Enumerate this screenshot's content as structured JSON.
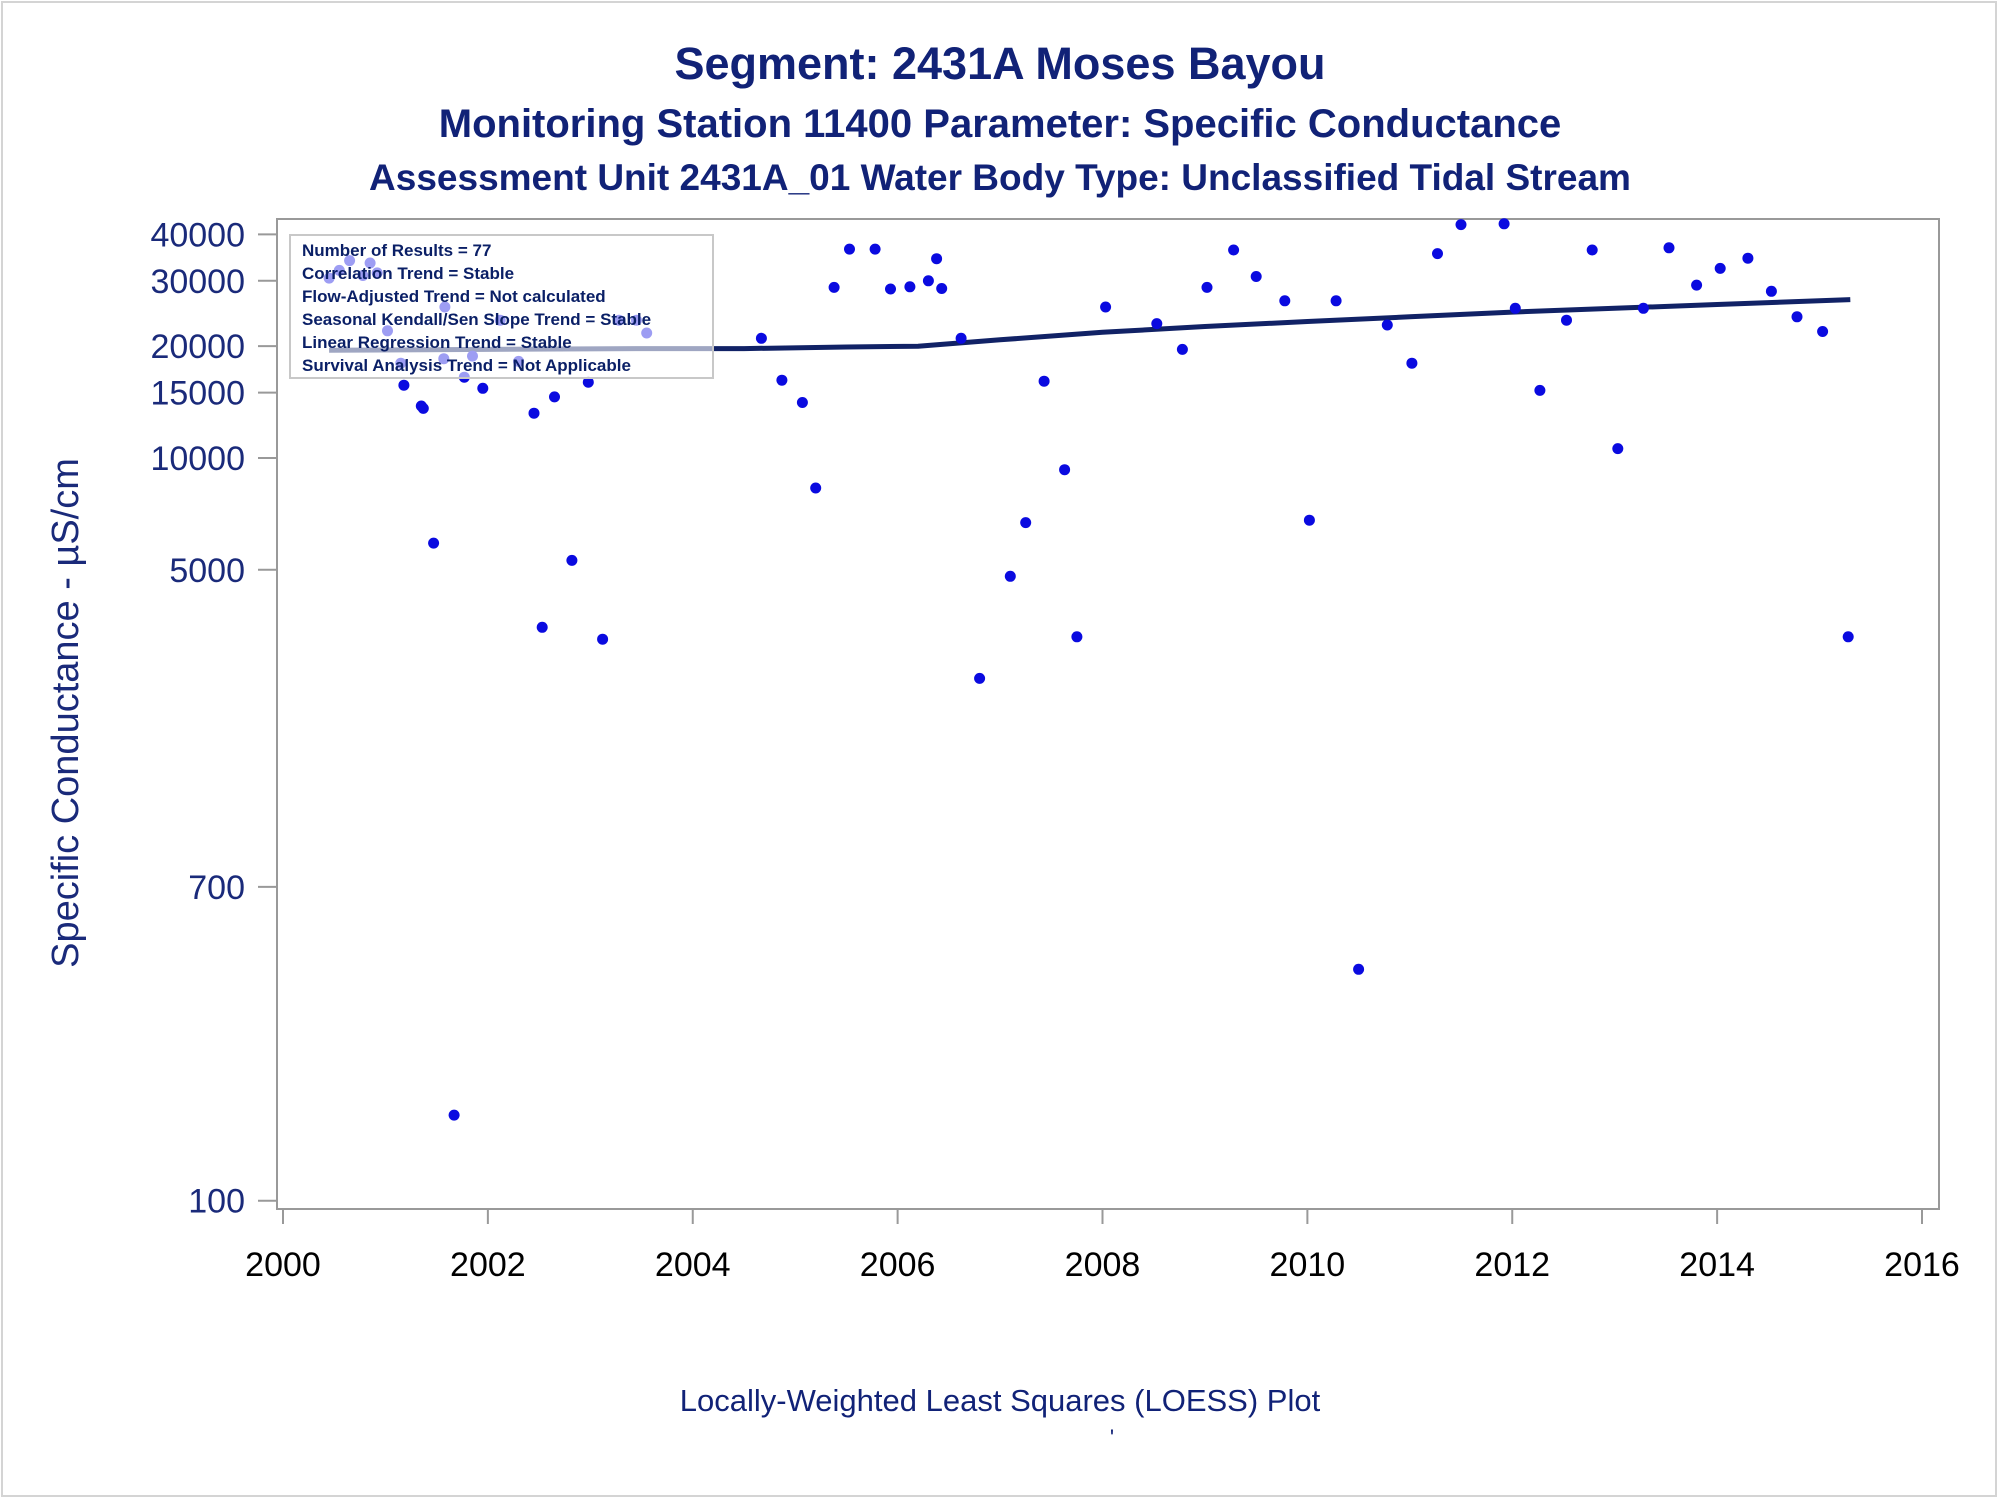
{
  "chart_data": {
    "type": "scatter",
    "title": "Segment: 2431A  Moses Bayou",
    "subtitle": "Monitoring Station 11400 Parameter: Specific Conductance",
    "subtitle2": "Assessment Unit 2431A_01   Water Body Type: Unclassified Tidal Stream",
    "xlabel": "",
    "ylabel": "Specific Conductance -  µS/cm",
    "footnote": "Locally-Weighted Least Squares (LOESS) Plot",
    "footmark": "'",
    "y_scale": "log",
    "xlim": [
      2000,
      2016
    ],
    "ylim": [
      95,
      44000
    ],
    "x_ticks": [
      2000,
      2002,
      2004,
      2006,
      2008,
      2010,
      2012,
      2014,
      2016
    ],
    "y_ticks": [
      100,
      700,
      5000,
      10000,
      15000,
      20000,
      30000,
      40000
    ],
    "y_tick_labels": [
      "100",
      "700",
      "5000",
      "10000",
      "15000",
      "20000",
      "30000",
      "40000"
    ],
    "legend_position": "top-left",
    "stats": [
      "Number of Results = 77",
      "Correlation Trend = Stable",
      "Flow-Adjusted Trend = Not calculated",
      "Seasonal Kendall/Sen Slope Trend = Stable",
      "Linear Regression Trend = Stable",
      "Survival Analysis Trend = Not Applicable"
    ],
    "points": [
      {
        "x": 2000.45,
        "y": 30500
      },
      {
        "x": 2000.55,
        "y": 32000
      },
      {
        "x": 2000.65,
        "y": 34000
      },
      {
        "x": 2000.78,
        "y": 31000
      },
      {
        "x": 2000.85,
        "y": 33500
      },
      {
        "x": 2000.92,
        "y": 31500
      },
      {
        "x": 2001.02,
        "y": 22000
      },
      {
        "x": 2001.15,
        "y": 18000
      },
      {
        "x": 2001.18,
        "y": 15700
      },
      {
        "x": 2001.35,
        "y": 13800
      },
      {
        "x": 2001.37,
        "y": 13600
      },
      {
        "x": 2001.47,
        "y": 5900
      },
      {
        "x": 2001.57,
        "y": 18500
      },
      {
        "x": 2001.58,
        "y": 25500
      },
      {
        "x": 2001.67,
        "y": 170
      },
      {
        "x": 2001.77,
        "y": 16500
      },
      {
        "x": 2001.85,
        "y": 18800
      },
      {
        "x": 2001.95,
        "y": 15400
      },
      {
        "x": 2002.12,
        "y": 23500
      },
      {
        "x": 2002.3,
        "y": 18200
      },
      {
        "x": 2002.45,
        "y": 13200
      },
      {
        "x": 2002.53,
        "y": 3500
      },
      {
        "x": 2002.65,
        "y": 14600
      },
      {
        "x": 2002.82,
        "y": 5300
      },
      {
        "x": 2002.98,
        "y": 16000
      },
      {
        "x": 2003.12,
        "y": 3250
      },
      {
        "x": 2003.28,
        "y": 23500
      },
      {
        "x": 2003.45,
        "y": 23500
      },
      {
        "x": 2003.55,
        "y": 21700
      },
      {
        "x": 2004.67,
        "y": 21000
      },
      {
        "x": 2004.87,
        "y": 16200
      },
      {
        "x": 2005.07,
        "y": 14100
      },
      {
        "x": 2005.2,
        "y": 8300
      },
      {
        "x": 2005.38,
        "y": 28800
      },
      {
        "x": 2005.53,
        "y": 36500
      },
      {
        "x": 2005.78,
        "y": 36500
      },
      {
        "x": 2005.93,
        "y": 28500
      },
      {
        "x": 2006.12,
        "y": 28900
      },
      {
        "x": 2006.3,
        "y": 30000
      },
      {
        "x": 2006.38,
        "y": 34400
      },
      {
        "x": 2006.43,
        "y": 28600
      },
      {
        "x": 2006.62,
        "y": 21000
      },
      {
        "x": 2006.8,
        "y": 2550
      },
      {
        "x": 2007.1,
        "y": 4800
      },
      {
        "x": 2007.25,
        "y": 6700
      },
      {
        "x": 2007.43,
        "y": 16100
      },
      {
        "x": 2007.63,
        "y": 9300
      },
      {
        "x": 2007.75,
        "y": 3300
      },
      {
        "x": 2008.03,
        "y": 25500
      },
      {
        "x": 2008.53,
        "y": 23000
      },
      {
        "x": 2008.78,
        "y": 19600
      },
      {
        "x": 2009.02,
        "y": 28800
      },
      {
        "x": 2009.28,
        "y": 36300
      },
      {
        "x": 2009.5,
        "y": 30800
      },
      {
        "x": 2009.78,
        "y": 26500
      },
      {
        "x": 2010.02,
        "y": 6800
      },
      {
        "x": 2010.28,
        "y": 26500
      },
      {
        "x": 2010.5,
        "y": 420
      },
      {
        "x": 2010.78,
        "y": 22800
      },
      {
        "x": 2011.02,
        "y": 18000
      },
      {
        "x": 2011.27,
        "y": 35500
      },
      {
        "x": 2011.5,
        "y": 42500
      },
      {
        "x": 2011.92,
        "y": 42700
      },
      {
        "x": 2012.03,
        "y": 25300
      },
      {
        "x": 2012.27,
        "y": 15200
      },
      {
        "x": 2012.53,
        "y": 23500
      },
      {
        "x": 2012.78,
        "y": 36300
      },
      {
        "x": 2013.03,
        "y": 10600
      },
      {
        "x": 2013.28,
        "y": 25300
      },
      {
        "x": 2013.53,
        "y": 36800
      },
      {
        "x": 2013.8,
        "y": 29200
      },
      {
        "x": 2014.03,
        "y": 32400
      },
      {
        "x": 2014.3,
        "y": 34500
      },
      {
        "x": 2014.53,
        "y": 28100
      },
      {
        "x": 2014.78,
        "y": 24000
      },
      {
        "x": 2015.03,
        "y": 21900
      },
      {
        "x": 2015.28,
        "y": 3300
      }
    ],
    "trend_line": [
      {
        "x": 2000.45,
        "y": 19500
      },
      {
        "x": 2002.0,
        "y": 19600
      },
      {
        "x": 2003.5,
        "y": 19700
      },
      {
        "x": 2004.5,
        "y": 19700
      },
      {
        "x": 2005.5,
        "y": 19900
      },
      {
        "x": 2006.2,
        "y": 20000
      },
      {
        "x": 2007.0,
        "y": 20800
      },
      {
        "x": 2008.0,
        "y": 21800
      },
      {
        "x": 2009.0,
        "y": 22600
      },
      {
        "x": 2010.0,
        "y": 23300
      },
      {
        "x": 2011.0,
        "y": 24000
      },
      {
        "x": 2012.0,
        "y": 24700
      },
      {
        "x": 2013.0,
        "y": 25300
      },
      {
        "x": 2014.0,
        "y": 25900
      },
      {
        "x": 2015.3,
        "y": 26700
      }
    ],
    "colors": {
      "points": "#0a0ae0",
      "trend": "#112266",
      "axis": "#999999",
      "title": "#112277"
    }
  }
}
